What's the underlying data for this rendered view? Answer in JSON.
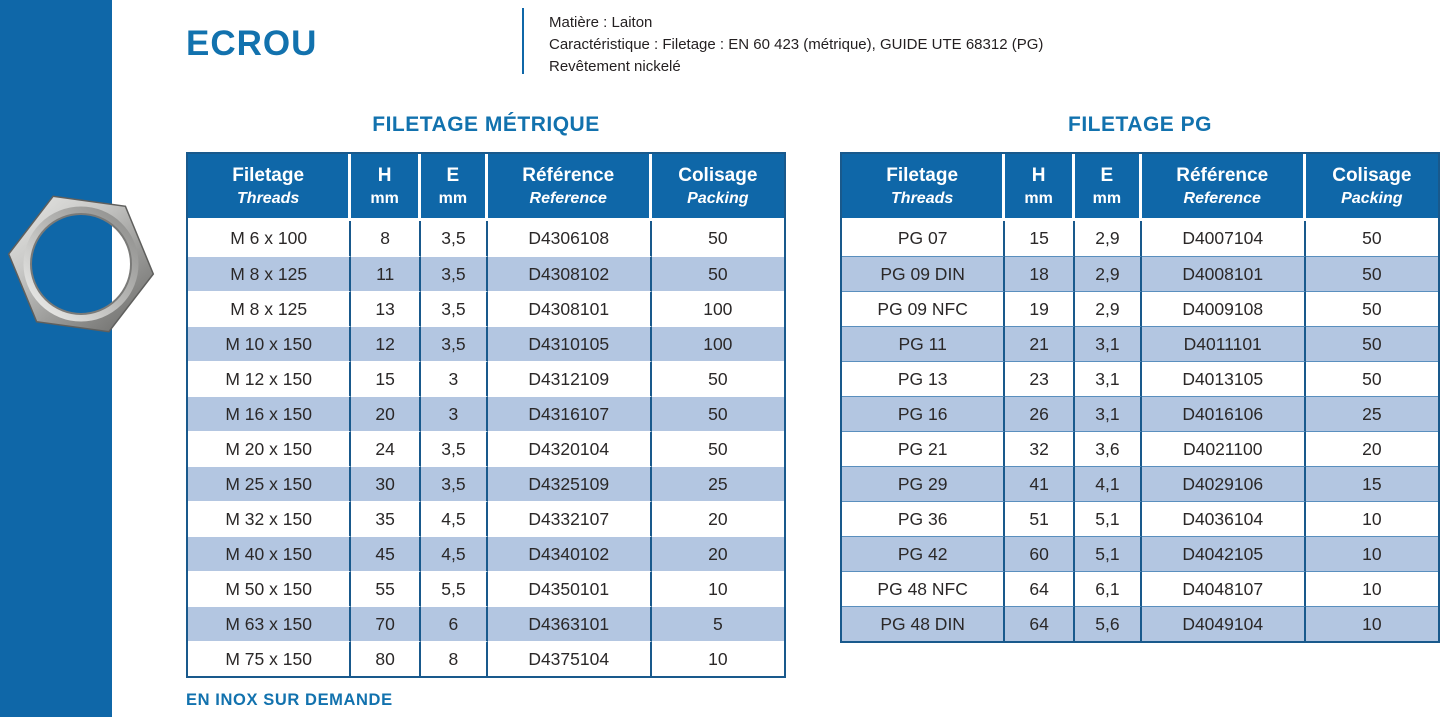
{
  "page": {
    "title": "ECROU",
    "info_lines": {
      "material": "Matière : Laiton",
      "characteristic": "Caractéristique : Filetage : EN 60 423 (métrique), GUIDE UTE 68312 (PG)",
      "coating": "Revêtement nickelé"
    },
    "footer_note": "EN INOX SUR DEMANDE"
  },
  "colors": {
    "brand_blue": "#0f67a8",
    "title_blue": "#1272ae",
    "stripe_blue": "#b3c6e1",
    "table_border_blue": "#19598c",
    "pg_row_line_blue": "#5a8fbe",
    "text_dark": "#231f20"
  },
  "icons": {
    "nut_photo": "hex-nut-photo"
  },
  "tables": [
    {
      "id": "metric",
      "title": "FILETAGE MÉTRIQUE",
      "columns": [
        {
          "label": "Filetage",
          "sub": "Threads",
          "sub_italic": true
        },
        {
          "label": "H",
          "sub": "mm",
          "sub_italic": false
        },
        {
          "label": "E",
          "sub": "mm",
          "sub_italic": false
        },
        {
          "label": "Référence",
          "sub": "Reference",
          "sub_italic": true
        },
        {
          "label": "Colisage",
          "sub": "Packing",
          "sub_italic": true
        }
      ],
      "rows": [
        [
          "M 6 x 100",
          "8",
          "3,5",
          "D4306108",
          "50"
        ],
        [
          "M 8 x 125",
          "11",
          "3,5",
          "D4308102",
          "50"
        ],
        [
          "M 8 x 125",
          "13",
          "3,5",
          "D4308101",
          "100"
        ],
        [
          "M 10 x 150",
          "12",
          "3,5",
          "D4310105",
          "100"
        ],
        [
          "M 12 x 150",
          "15",
          "3",
          "D4312109",
          "50"
        ],
        [
          "M 16 x 150",
          "20",
          "3",
          "D4316107",
          "50"
        ],
        [
          "M 20 x 150",
          "24",
          "3,5",
          "D4320104",
          "50"
        ],
        [
          "M 25 x 150",
          "30",
          "3,5",
          "D4325109",
          "25"
        ],
        [
          "M 32 x 150",
          "35",
          "4,5",
          "D4332107",
          "20"
        ],
        [
          "M 40 x 150",
          "45",
          "4,5",
          "D4340102",
          "20"
        ],
        [
          "M 50 x 150",
          "55",
          "5,5",
          "D4350101",
          "10"
        ],
        [
          "M 63 x 150",
          "70",
          "6",
          "D4363101",
          "5"
        ],
        [
          "M 75 x 150",
          "80",
          "8",
          "D4375104",
          "10"
        ]
      ]
    },
    {
      "id": "pg",
      "title": "FILETAGE PG",
      "columns": [
        {
          "label": "Filetage",
          "sub": "Threads",
          "sub_italic": true
        },
        {
          "label": "H",
          "sub": "mm",
          "sub_italic": false
        },
        {
          "label": "E",
          "sub": "mm",
          "sub_italic": false
        },
        {
          "label": "Référence",
          "sub": "Reference",
          "sub_italic": true
        },
        {
          "label": "Colisage",
          "sub": "Packing",
          "sub_italic": true
        }
      ],
      "rows": [
        [
          "PG 07",
          "15",
          "2,9",
          "D4007104",
          "50"
        ],
        [
          "PG 09 DIN",
          "18",
          "2,9",
          "D4008101",
          "50"
        ],
        [
          "PG 09 NFC",
          "19",
          "2,9",
          "D4009108",
          "50"
        ],
        [
          "PG 11",
          "21",
          "3,1",
          "D4011101",
          "50"
        ],
        [
          "PG 13",
          "23",
          "3,1",
          "D4013105",
          "50"
        ],
        [
          "PG 16",
          "26",
          "3,1",
          "D4016106",
          "25"
        ],
        [
          "PG 21",
          "32",
          "3,6",
          "D4021100",
          "20"
        ],
        [
          "PG 29",
          "41",
          "4,1",
          "D4029106",
          "15"
        ],
        [
          "PG 36",
          "51",
          "5,1",
          "D4036104",
          "10"
        ],
        [
          "PG 42",
          "60",
          "5,1",
          "D4042105",
          "10"
        ],
        [
          "PG 48 NFC",
          "64",
          "6,1",
          "D4048107",
          "10"
        ],
        [
          "PG 48 DIN",
          "64",
          "5,6",
          "D4049104",
          "10"
        ]
      ]
    }
  ]
}
